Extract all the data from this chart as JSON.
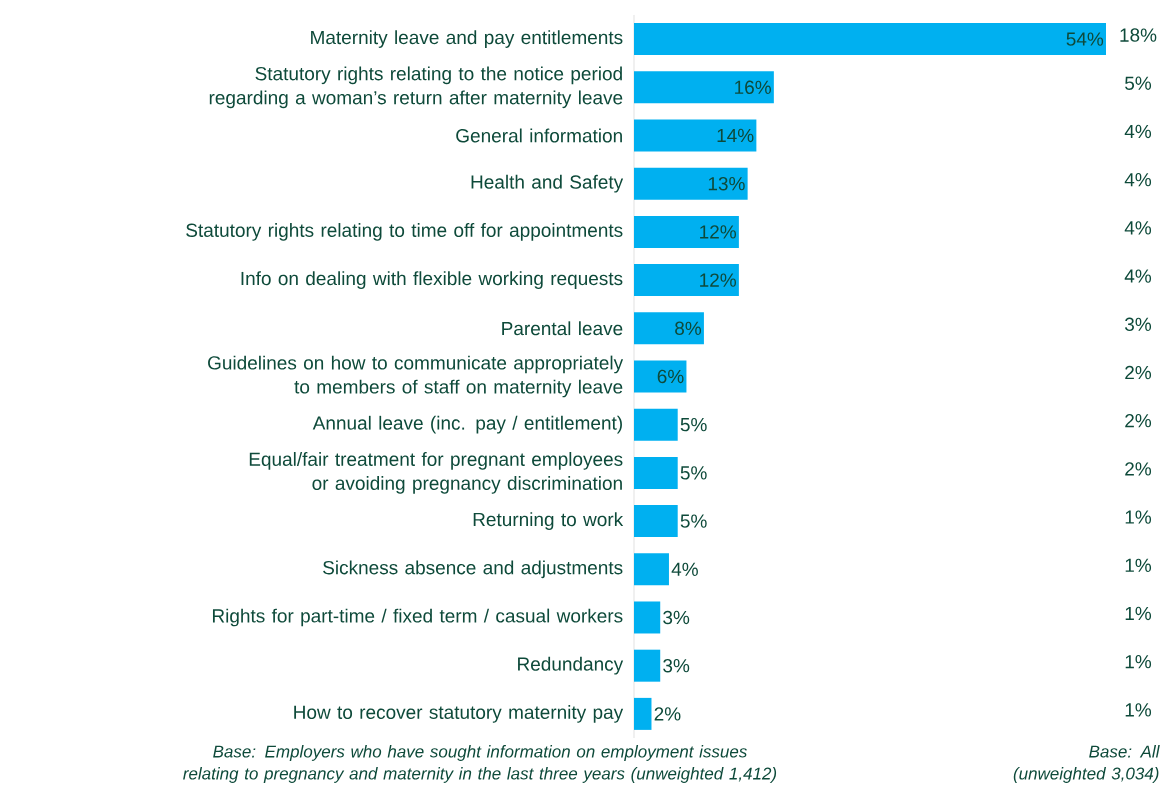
{
  "chart_data": {
    "type": "bar",
    "orientation": "horizontal",
    "color": "#00b0f0",
    "data_labels": true,
    "categories": [
      "Maternity leave and pay entitlements",
      "Statutory rights relating to the notice period regarding a woman’s return after maternity leave",
      "General information",
      "Health and Safety",
      "Statutory rights relating to time off for appointments",
      "Info on dealing with flexible working requests",
      "Parental leave",
      "Guidelines on how to communicate appropriately to members of staff on maternity leave",
      "Annual leave (inc. pay / entitlement)",
      "Equal/fair treatment for pregnant employees or avoiding pregnancy discrimination",
      "Returning to work",
      "Sickness absence and adjustments",
      "Rights for part-time / fixed term / casual workers",
      "Redundancy",
      "How to recover statutory maternity pay"
    ],
    "values": [
      54,
      16,
      14,
      13,
      12,
      12,
      8,
      6,
      5,
      5,
      5,
      4,
      3,
      3,
      2
    ],
    "value_labels": [
      "54%",
      "16%",
      "14%",
      "13%",
      "12%",
      "12%",
      "8%",
      "6%",
      "5%",
      "5%",
      "5%",
      "4%",
      "3%",
      "3%",
      "2%"
    ],
    "annotations": [
      "18%",
      "5%",
      "4%",
      "4%",
      "4%",
      "4%",
      "3%",
      "2%",
      "2%",
      "2%",
      "1%",
      "1%",
      "1%",
      "1%",
      "1%",
      "Base: Employers who have sought information on employment issues relating to pregnancy and maternity in the last three years (unweighted 1,412)",
      "Base:  All (unweighted 3,034)"
    ]
  }
}
